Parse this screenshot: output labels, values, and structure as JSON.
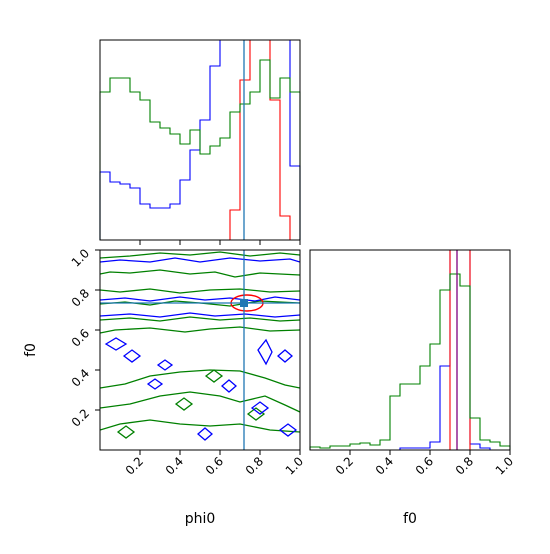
{
  "chart_data": [
    {
      "type": "histogram",
      "panel": "phi0 marginal",
      "x_range": [
        0,
        1.0
      ],
      "bin_edges": [
        0,
        0.05,
        0.1,
        0.15,
        0.2,
        0.25,
        0.3,
        0.35,
        0.4,
        0.45,
        0.5,
        0.55,
        0.6,
        0.65,
        0.7,
        0.75,
        0.8,
        0.85,
        0.9,
        0.95,
        1.0
      ],
      "series": [
        {
          "color": "#0000ff",
          "values": [
            0.34,
            0.29,
            0.28,
            0.26,
            0.18,
            0.16,
            0.16,
            0.18,
            0.3,
            0.45,
            0.6,
            0.87,
            1.0,
            1.0,
            1.0,
            1.0,
            1.0,
            1.0,
            1.0,
            0.37
          ]
        },
        {
          "color": "#ff0000",
          "values": [
            0,
            0,
            0,
            0,
            0,
            0,
            0,
            0,
            0,
            0,
            0,
            0,
            0,
            0.15,
            0.8,
            1.0,
            1.0,
            0.7,
            0.12,
            0
          ]
        },
        {
          "color": "#008000",
          "values": [
            0.74,
            0.81,
            0.81,
            0.74,
            0.7,
            0.59,
            0.56,
            0.53,
            0.48,
            0.55,
            0.43,
            0.47,
            0.51,
            0.64,
            0.68,
            0.74,
            0.9,
            0.71,
            0.81,
            0.74
          ]
        }
      ],
      "truth_line": {
        "value": 0.72,
        "color": "#1f77b4"
      }
    },
    {
      "type": "contour",
      "panel": "phi0 vs f0",
      "xlabel": "phi0",
      "ylabel": "f0",
      "xlim": [
        0,
        1.0
      ],
      "ylim": [
        0,
        1.0
      ],
      "x_ticks": [
        "0.2",
        "0.4",
        "0.6",
        "0.8",
        "1.0"
      ],
      "y_ticks": [
        "0.2",
        "0.4",
        "0.6",
        "0.8",
        "1.0"
      ],
      "series": [
        {
          "color": "#ff0000",
          "level": "peak",
          "center": [
            0.73,
            0.73
          ]
        },
        {
          "color": "#0000ff",
          "level": "broad"
        },
        {
          "color": "#008000",
          "level": "broad"
        }
      ],
      "truth": {
        "x": 0.72,
        "y": 0.735,
        "color": "#1f77b4"
      }
    },
    {
      "type": "histogram",
      "panel": "f0 marginal",
      "xlabel": "f0",
      "x_range": [
        0,
        1.0
      ],
      "x_ticks": [
        "0.2",
        "0.4",
        "0.6",
        "0.8",
        "1.0"
      ],
      "bin_edges": [
        0,
        0.05,
        0.1,
        0.15,
        0.2,
        0.25,
        0.3,
        0.35,
        0.4,
        0.45,
        0.5,
        0.55,
        0.6,
        0.65,
        0.7,
        0.75,
        0.8,
        0.85,
        0.9,
        0.95,
        1.0
      ],
      "series": [
        {
          "color": "#0000ff",
          "values": [
            0,
            0,
            0,
            0,
            0,
            0,
            0,
            0,
            0,
            0.01,
            0.01,
            0.01,
            0.04,
            0.42,
            1.0,
            1.0,
            0.03,
            0.01,
            0,
            0
          ]
        },
        {
          "color": "#ff0000",
          "values": [
            0,
            0,
            0,
            0,
            0,
            0,
            0,
            0,
            0,
            0,
            0,
            0,
            0,
            0,
            1.0,
            1.0,
            0,
            0,
            0,
            0
          ]
        },
        {
          "color": "#008000",
          "values": [
            0.015,
            0.01,
            0.02,
            0.02,
            0.03,
            0.035,
            0.025,
            0.05,
            0.27,
            0.33,
            0.33,
            0.42,
            0.53,
            0.8,
            0.88,
            0.82,
            0.16,
            0.05,
            0.04,
            0.02
          ]
        }
      ],
      "truth_line": {
        "value": 0.735,
        "color": "#800080"
      }
    }
  ]
}
